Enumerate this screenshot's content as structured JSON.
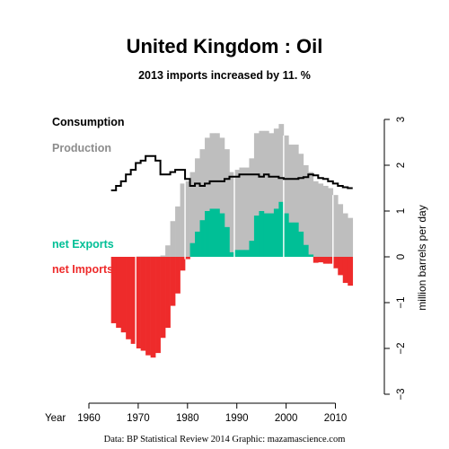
{
  "chart_data": {
    "type": "bar",
    "title": "United Kingdom :  Oil",
    "subtitle": "2013 imports increased by 11. %",
    "x_axis_label": "Year",
    "ylabel": "million barrels per day",
    "caption": "Data: BP Statistical Review 2014    Graphic: mazamascience.com",
    "xlim": [
      1960,
      2013
    ],
    "ylim": [
      -3,
      3
    ],
    "x_ticks": [
      "1960",
      "1970",
      "1980",
      "1990",
      "2000",
      "2010"
    ],
    "y_ticks": [
      "3",
      "2",
      "1",
      "0",
      "−1",
      "−2",
      "−3"
    ],
    "legend_position": "left",
    "legend": {
      "consumption": "Consumption",
      "production": "Production",
      "net_exports": "net Exports",
      "net_imports": "net Imports"
    },
    "colors": {
      "consumption": "#000000",
      "production": "#bebebe",
      "net_exports": "#00bf96",
      "net_imports": "#ee2b2b",
      "decade_lines": "#ffffff"
    },
    "years": [
      1965,
      1966,
      1967,
      1968,
      1969,
      1970,
      1971,
      1972,
      1973,
      1974,
      1975,
      1976,
      1977,
      1978,
      1979,
      1980,
      1981,
      1982,
      1983,
      1984,
      1985,
      1986,
      1987,
      1988,
      1989,
      1990,
      1991,
      1992,
      1993,
      1994,
      1995,
      1996,
      1997,
      1998,
      1999,
      2000,
      2001,
      2002,
      2003,
      2004,
      2005,
      2006,
      2007,
      2008,
      2009,
      2010,
      2011,
      2012,
      2013
    ],
    "consumption": [
      1.45,
      1.55,
      1.65,
      1.8,
      1.9,
      2.05,
      2.1,
      2.2,
      2.2,
      2.1,
      1.8,
      1.8,
      1.85,
      1.9,
      1.9,
      1.7,
      1.55,
      1.6,
      1.55,
      1.6,
      1.65,
      1.65,
      1.65,
      1.7,
      1.75,
      1.75,
      1.8,
      1.8,
      1.8,
      1.8,
      1.75,
      1.8,
      1.75,
      1.75,
      1.72,
      1.7,
      1.7,
      1.7,
      1.72,
      1.74,
      1.8,
      1.78,
      1.72,
      1.7,
      1.65,
      1.6,
      1.55,
      1.52,
      1.5
    ],
    "production": [
      0.0,
      0.0,
      0.0,
      0.0,
      0.0,
      0.01,
      0.01,
      0.01,
      0.01,
      0.01,
      0.03,
      0.25,
      0.78,
      1.1,
      1.6,
      1.65,
      1.85,
      2.15,
      2.35,
      2.6,
      2.7,
      2.7,
      2.6,
      2.35,
      1.85,
      1.9,
      1.95,
      1.95,
      2.15,
      2.7,
      2.75,
      2.75,
      2.7,
      2.8,
      2.9,
      2.65,
      2.45,
      2.45,
      2.25,
      2.0,
      1.85,
      1.65,
      1.6,
      1.55,
      1.5,
      1.35,
      1.15,
      0.95,
      0.85
    ],
    "net_exports": [
      0,
      0,
      0,
      0,
      0,
      0,
      0,
      0,
      0,
      0,
      0,
      0,
      0,
      0,
      0,
      0,
      0.3,
      0.55,
      0.8,
      1.0,
      1.05,
      1.05,
      0.95,
      0.65,
      0.1,
      0.15,
      0.15,
      0.15,
      0.35,
      0.9,
      1.0,
      0.95,
      0.95,
      1.05,
      1.2,
      0.95,
      0.75,
      0.75,
      0.55,
      0.26,
      0.05,
      0,
      0,
      0,
      0,
      0,
      0,
      0,
      0
    ],
    "net_imports": [
      1.45,
      1.55,
      1.65,
      1.8,
      1.9,
      2.0,
      2.05,
      2.15,
      2.2,
      2.1,
      1.77,
      1.55,
      1.07,
      0.8,
      0.3,
      0.05,
      0,
      0,
      0,
      0,
      0,
      0,
      0,
      0,
      0,
      0,
      0,
      0,
      0,
      0,
      0,
      0,
      0,
      0,
      0,
      0,
      0,
      0,
      0,
      0,
      0,
      0.13,
      0.12,
      0.15,
      0.15,
      0.25,
      0.4,
      0.57,
      0.63
    ]
  }
}
